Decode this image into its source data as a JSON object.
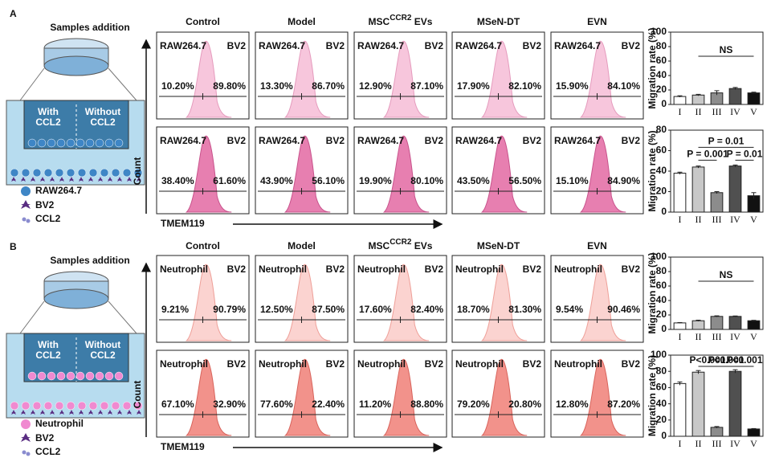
{
  "panels": [
    {
      "label": "A",
      "schematic_title": "Samples addition",
      "well_left": [
        "With",
        "CCL2"
      ],
      "well_right": [
        "Without",
        "CCL2"
      ],
      "legend": [
        "RAW264.7",
        "BV2",
        "CCL2"
      ],
      "headers": [
        "Control",
        "Model",
        {
          "text": "MSC",
          "sup": "CCR2",
          "suffix": " EVs"
        },
        "MSeN-DT",
        "EVN"
      ],
      "y_label": "Count",
      "x_label": "TMEM119",
      "rows": [
        {
          "left_cell": "RAW264.7",
          "right_cell": "BV2",
          "boxes": [
            {
              "left": "10.20%",
              "right": "89.80%"
            },
            {
              "left": "13.30%",
              "right": "86.70%"
            },
            {
              "left": "12.90%",
              "right": "87.10%"
            },
            {
              "left": "17.90%",
              "right": "82.10%"
            },
            {
              "left": "15.90%",
              "right": "84.10%"
            }
          ]
        },
        {
          "left_cell": "RAW264.7",
          "right_cell": "BV2",
          "boxes": [
            {
              "left": "38.40%",
              "right": "61.60%"
            },
            {
              "left": "43.90%",
              "right": "56.10%"
            },
            {
              "left": "19.90%",
              "right": "80.10%"
            },
            {
              "left": "43.50%",
              "right": "56.50%"
            },
            {
              "left": "15.10%",
              "right": "84.90%"
            }
          ]
        }
      ]
    },
    {
      "label": "B",
      "schematic_title": "Samples addition",
      "well_left": [
        "With",
        "CCL2"
      ],
      "well_right": [
        "Without",
        "CCL2"
      ],
      "legend": [
        "Neutrophil",
        "BV2",
        "CCL2"
      ],
      "headers": [
        "Control",
        "Model",
        {
          "text": "MSC",
          "sup": "CCR2",
          "suffix": " EVs"
        },
        "MSeN-DT",
        "EVN"
      ],
      "y_label": "Count",
      "x_label": "TMEM119",
      "rows": [
        {
          "left_cell": "Neutrophil",
          "right_cell": "BV2",
          "boxes": [
            {
              "left": "9.21%",
              "right": "90.79%"
            },
            {
              "left": "12.50%",
              "right": "87.50%"
            },
            {
              "left": "17.60%",
              "right": "82.40%"
            },
            {
              "left": "18.70%",
              "right": "81.30%"
            },
            {
              "left": "9.54%",
              "right": "90.46%"
            }
          ]
        },
        {
          "left_cell": "Neutrophil",
          "right_cell": "BV2",
          "boxes": [
            {
              "left": "67.10%",
              "right": "32.90%"
            },
            {
              "left": "77.60%",
              "right": "22.40%"
            },
            {
              "left": "11.20%",
              "right": "88.80%"
            },
            {
              "left": "79.20%",
              "right": "20.80%"
            },
            {
              "left": "12.80%",
              "right": "87.20%"
            }
          ]
        }
      ]
    }
  ],
  "chart_data": [
    {
      "type": "bar",
      "y_label": "Migration rate (%)",
      "categories": [
        "I",
        "II",
        "III",
        "IV",
        "V"
      ],
      "values": [
        11,
        13,
        16,
        22,
        16
      ],
      "errors": [
        1,
        1,
        3,
        1.5,
        1
      ],
      "colors": [
        "#ffffff",
        "#c8c8c8",
        "#8c8c8c",
        "#505050",
        "#111111"
      ],
      "ylim": [
        0,
        100
      ],
      "yticks": [
        0,
        20,
        40,
        60,
        80,
        100
      ],
      "annotations": [
        "NS"
      ]
    },
    {
      "type": "bar",
      "y_label": "Migration rate (%)",
      "categories": [
        "I",
        "II",
        "III",
        "IV",
        "V"
      ],
      "values": [
        38,
        44,
        19,
        45,
        16
      ],
      "errors": [
        1,
        1,
        1,
        1,
        3
      ],
      "colors": [
        "#ffffff",
        "#c8c8c8",
        "#8c8c8c",
        "#505050",
        "#111111"
      ],
      "ylim": [
        0,
        80
      ],
      "yticks": [
        0,
        20,
        40,
        60,
        80
      ],
      "annotations": [
        "P = 0.01",
        "P = 0.001",
        "P = 0.01"
      ]
    },
    {
      "type": "bar",
      "y_label": "Migration rate (%)",
      "categories": [
        "I",
        "II",
        "III",
        "IV",
        "V"
      ],
      "values": [
        9,
        12,
        18,
        18,
        12
      ],
      "errors": [
        0.5,
        0.8,
        0.8,
        0.6,
        0.6
      ],
      "colors": [
        "#ffffff",
        "#c8c8c8",
        "#8c8c8c",
        "#505050",
        "#111111"
      ],
      "ylim": [
        0,
        100
      ],
      "yticks": [
        0,
        20,
        40,
        60,
        80,
        100
      ],
      "annotations": [
        "NS"
      ]
    },
    {
      "type": "bar",
      "y_label": "Migration rate (%)",
      "categories": [
        "I",
        "II",
        "III",
        "IV",
        "V"
      ],
      "values": [
        65,
        79,
        11,
        80,
        9
      ],
      "errors": [
        2,
        2,
        1,
        2,
        0.5
      ],
      "colors": [
        "#ffffff",
        "#c8c8c8",
        "#8c8c8c",
        "#505050",
        "#111111"
      ],
      "ylim": [
        0,
        100
      ],
      "yticks": [
        0,
        20,
        40,
        60,
        80,
        100
      ],
      "annotations": [
        "P<0.001",
        "P<0.001",
        "P<0.001"
      ]
    }
  ]
}
